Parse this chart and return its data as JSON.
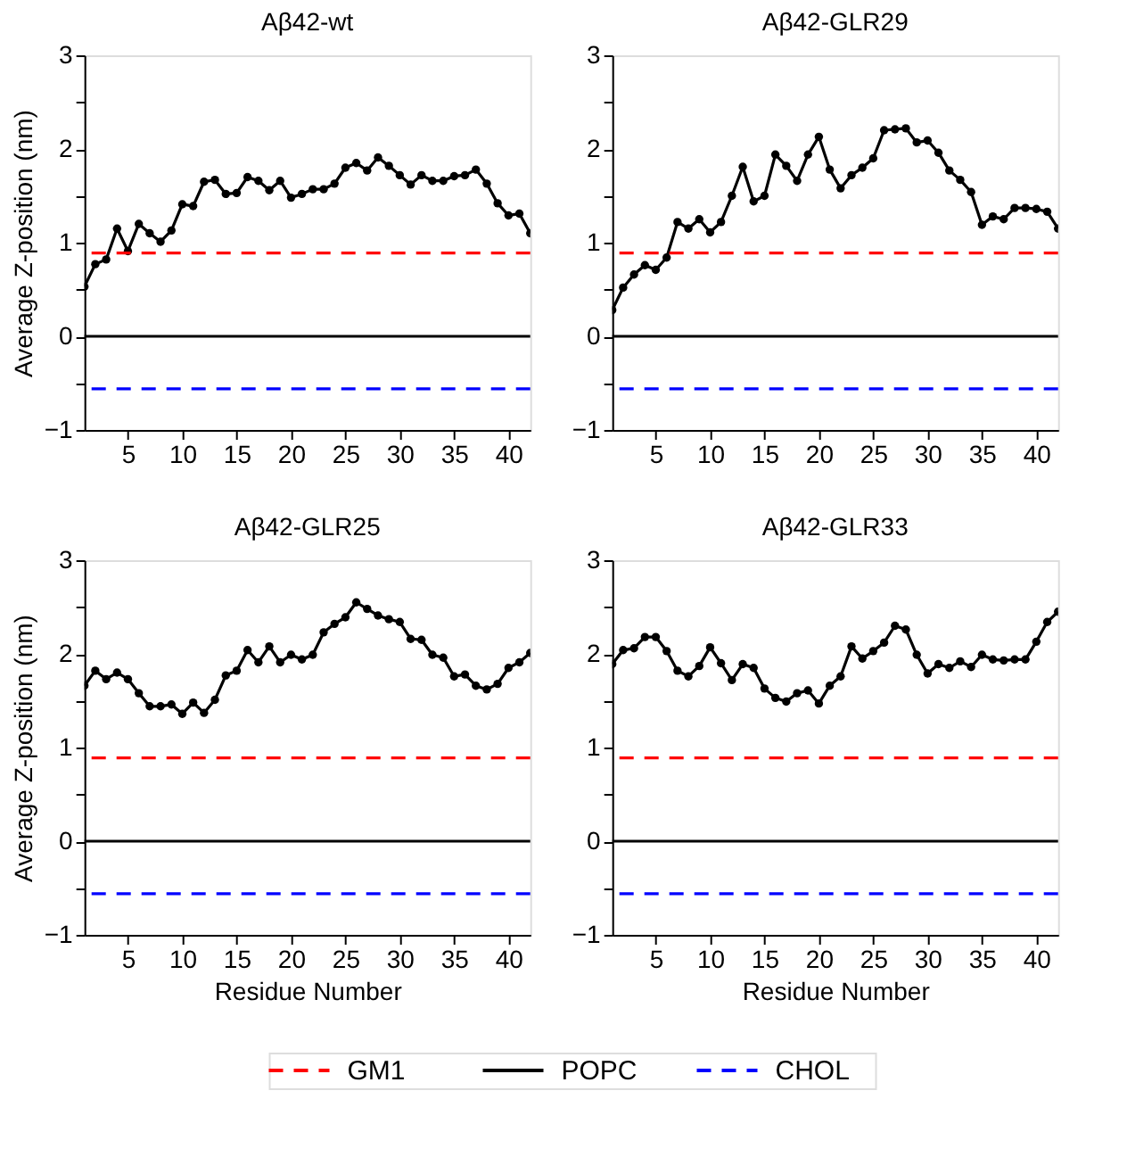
{
  "chart_data": [
    {
      "type": "line",
      "title": "Aβ42-wt",
      "ylabel": "Average Z-position (nm)",
      "xlim": [
        1,
        42
      ],
      "xticks": [
        5,
        10,
        15,
        20,
        25,
        30,
        35,
        40
      ],
      "ylim": [
        -1,
        3
      ],
      "yticks": [
        -1,
        {
          "value": -0.5,
          "label": null
        },
        0,
        {
          "value": 0.5,
          "label": null
        },
        1,
        {
          "value": 1.5,
          "label": null
        },
        2,
        {
          "value": 2.5,
          "label": null
        },
        3
      ],
      "marker": "circle",
      "line_style": "solid",
      "grid": false,
      "legend": "bottom",
      "x": [
        1,
        2,
        3,
        4,
        5,
        6,
        7,
        8,
        9,
        10,
        11,
        12,
        13,
        14,
        15,
        16,
        17,
        18,
        19,
        20,
        21,
        22,
        23,
        24,
        25,
        26,
        27,
        28,
        29,
        30,
        31,
        32,
        33,
        34,
        35,
        36,
        37,
        38,
        39,
        40,
        41,
        42
      ],
      "series": [
        {
          "color": "#000000",
          "values": [
            0.53,
            0.77,
            0.82,
            1.15,
            0.91,
            1.2,
            1.1,
            1.01,
            1.13,
            1.41,
            1.39,
            1.65,
            1.67,
            1.52,
            1.53,
            1.7,
            1.66,
            1.56,
            1.66,
            1.48,
            1.52,
            1.57,
            1.57,
            1.63,
            1.8,
            1.85,
            1.77,
            1.91,
            1.82,
            1.72,
            1.62,
            1.72,
            1.66,
            1.66,
            1.71,
            1.72,
            1.78,
            1.63,
            1.42,
            1.29,
            1.31,
            1.1
          ]
        }
      ],
      "ref_lines": [
        {
          "axis": "y",
          "value": 0.89,
          "label": "GM1",
          "color": "#ff0000",
          "line_style": "dashed"
        },
        {
          "axis": "y",
          "value": 0,
          "label": "POPC",
          "color": "#000000",
          "line_style": "solid"
        },
        {
          "axis": "y",
          "value": -0.56,
          "label": "CHOL",
          "color": "#0000ff",
          "line_style": "dashed"
        }
      ]
    },
    {
      "type": "line",
      "title": "Aβ42-GLR29",
      "xlim": [
        1,
        42
      ],
      "xticks": [
        5,
        10,
        15,
        20,
        25,
        30,
        35,
        40
      ],
      "ylim": [
        -1,
        3
      ],
      "yticks": [
        -1,
        {
          "value": -0.5,
          "label": null
        },
        0,
        {
          "value": 0.5,
          "label": null
        },
        1,
        {
          "value": 1.5,
          "label": null
        },
        2,
        {
          "value": 2.5,
          "label": null
        },
        3
      ],
      "marker": "circle",
      "line_style": "solid",
      "grid": false,
      "x": [
        1,
        2,
        3,
        4,
        5,
        6,
        7,
        8,
        9,
        10,
        11,
        12,
        13,
        14,
        15,
        16,
        17,
        18,
        19,
        20,
        21,
        22,
        23,
        24,
        25,
        26,
        27,
        28,
        29,
        30,
        31,
        32,
        33,
        34,
        35,
        36,
        37,
        38,
        39,
        40,
        41,
        42
      ],
      "series": [
        {
          "color": "#000000",
          "values": [
            0.28,
            0.52,
            0.66,
            0.76,
            0.71,
            0.84,
            1.22,
            1.15,
            1.25,
            1.11,
            1.22,
            1.5,
            1.81,
            1.44,
            1.5,
            1.94,
            1.82,
            1.66,
            1.94,
            2.13,
            1.78,
            1.58,
            1.72,
            1.8,
            1.9,
            2.2,
            2.21,
            2.22,
            2.07,
            2.09,
            1.96,
            1.77,
            1.67,
            1.54,
            1.19,
            1.28,
            1.25,
            1.37,
            1.37,
            1.36,
            1.33,
            1.15
          ]
        }
      ],
      "ref_lines": [
        {
          "axis": "y",
          "value": 0.89,
          "color": "#ff0000",
          "line_style": "dashed"
        },
        {
          "axis": "y",
          "value": 0,
          "color": "#000000",
          "line_style": "solid"
        },
        {
          "axis": "y",
          "value": -0.56,
          "color": "#0000ff",
          "line_style": "dashed"
        }
      ]
    },
    {
      "type": "line",
      "title": "Aβ42-GLR25",
      "xlabel": "Residue Number",
      "ylabel": "Average Z-position (nm)",
      "xlim": [
        1,
        42
      ],
      "xticks": [
        5,
        10,
        15,
        20,
        25,
        30,
        35,
        40
      ],
      "ylim": [
        -1,
        3
      ],
      "yticks": [
        -1,
        {
          "value": -0.5,
          "label": null
        },
        0,
        {
          "value": 0.5,
          "label": null
        },
        1,
        {
          "value": 1.5,
          "label": null
        },
        2,
        {
          "value": 2.5,
          "label": null
        },
        3
      ],
      "marker": "circle",
      "line_style": "solid",
      "grid": false,
      "x": [
        1,
        2,
        3,
        4,
        5,
        6,
        7,
        8,
        9,
        10,
        11,
        12,
        13,
        14,
        15,
        16,
        17,
        18,
        19,
        20,
        21,
        22,
        23,
        24,
        25,
        26,
        27,
        28,
        29,
        30,
        31,
        32,
        33,
        34,
        35,
        36,
        37,
        38,
        39,
        40,
        41,
        42
      ],
      "series": [
        {
          "color": "#000000",
          "values": [
            1.66,
            1.82,
            1.73,
            1.8,
            1.73,
            1.58,
            1.44,
            1.44,
            1.46,
            1.36,
            1.48,
            1.37,
            1.51,
            1.77,
            1.82,
            2.04,
            1.91,
            2.08,
            1.91,
            1.99,
            1.94,
            1.99,
            2.23,
            2.32,
            2.39,
            2.55,
            2.48,
            2.41,
            2.37,
            2.34,
            2.16,
            2.15,
            1.99,
            1.96,
            1.76,
            1.78,
            1.66,
            1.62,
            1.68,
            1.85,
            1.91,
            2.01
          ]
        }
      ],
      "ref_lines": [
        {
          "axis": "y",
          "value": 0.89,
          "color": "#ff0000",
          "line_style": "dashed"
        },
        {
          "axis": "y",
          "value": 0,
          "color": "#000000",
          "line_style": "solid"
        },
        {
          "axis": "y",
          "value": -0.56,
          "color": "#0000ff",
          "line_style": "dashed"
        }
      ]
    },
    {
      "type": "line",
      "title": "Aβ42-GLR33",
      "xlabel": "Residue Number",
      "xlim": [
        1,
        42
      ],
      "xticks": [
        5,
        10,
        15,
        20,
        25,
        30,
        35,
        40
      ],
      "ylim": [
        -1,
        3
      ],
      "yticks": [
        -1,
        {
          "value": -0.5,
          "label": null
        },
        0,
        {
          "value": 0.5,
          "label": null
        },
        1,
        {
          "value": 1.5,
          "label": null
        },
        2,
        {
          "value": 2.5,
          "label": null
        },
        3
      ],
      "marker": "circle",
      "line_style": "solid",
      "grid": false,
      "x": [
        1,
        2,
        3,
        4,
        5,
        6,
        7,
        8,
        9,
        10,
        11,
        12,
        13,
        14,
        15,
        16,
        17,
        18,
        19,
        20,
        21,
        22,
        23,
        24,
        25,
        26,
        27,
        28,
        29,
        30,
        31,
        32,
        33,
        34,
        35,
        36,
        37,
        38,
        39,
        40,
        41,
        42
      ],
      "series": [
        {
          "color": "#000000",
          "values": [
            1.89,
            2.04,
            2.06,
            2.18,
            2.18,
            2.03,
            1.82,
            1.76,
            1.87,
            2.07,
            1.9,
            1.72,
            1.89,
            1.85,
            1.63,
            1.53,
            1.49,
            1.58,
            1.61,
            1.47,
            1.66,
            1.76,
            2.08,
            1.95,
            2.03,
            2.12,
            2.3,
            2.26,
            1.99,
            1.79,
            1.89,
            1.85,
            1.92,
            1.86,
            1.99,
            1.94,
            1.93,
            1.94,
            1.94,
            2.13,
            2.34,
            2.45
          ]
        }
      ],
      "ref_lines": [
        {
          "axis": "y",
          "value": 0.89,
          "color": "#ff0000",
          "line_style": "dashed"
        },
        {
          "axis": "y",
          "value": 0,
          "color": "#000000",
          "line_style": "solid"
        },
        {
          "axis": "y",
          "value": -0.56,
          "color": "#0000ff",
          "line_style": "dashed"
        }
      ]
    }
  ]
}
